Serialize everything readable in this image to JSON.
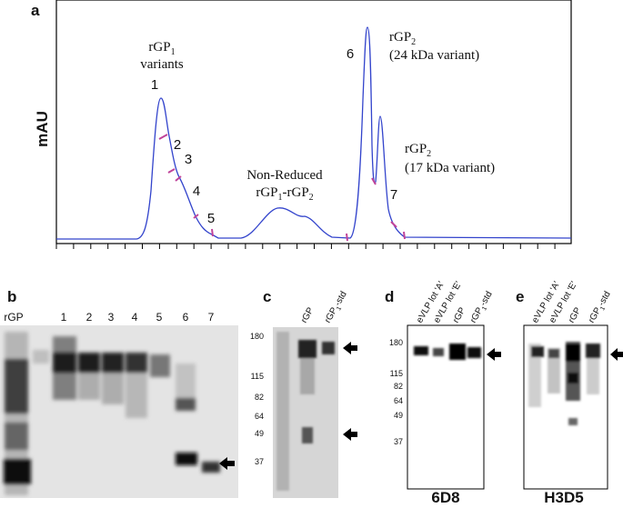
{
  "figure": {
    "panel_a": {
      "label": "a",
      "y_axis_label": "mAU",
      "rgp1_group": {
        "text": "rGP",
        "sub": "1",
        "line2": "variants"
      },
      "non_reduced": {
        "line1": "Non-Reduced",
        "part1": "rGP",
        "sub1": "1",
        "part2": "-rGP",
        "sub2": "2"
      },
      "rgp2_24": {
        "text": "rGP",
        "sub": "2",
        "line2": "(24 kDa variant)"
      },
      "rgp2_17": {
        "text": "rGP",
        "sub": "2",
        "line2": "(17 kDa variant)"
      },
      "peaks": [
        "1",
        "2",
        "3",
        "4",
        "5",
        "6",
        "7"
      ]
    },
    "panel_b": {
      "label": "b",
      "lanes": [
        "rGP",
        "1",
        "2",
        "3",
        "4",
        "5",
        "6",
        "7"
      ]
    },
    "panel_c": {
      "label": "c",
      "mw_markers": [
        180,
        115,
        82,
        64,
        49,
        37
      ],
      "lanes": [
        {
          "text": "rGP"
        },
        {
          "text": "rGP",
          "sub": "1",
          "suffix": "-std"
        }
      ]
    },
    "panel_d": {
      "label": "d",
      "mw_markers": [
        180,
        115,
        82,
        64,
        49,
        37
      ],
      "lanes": [
        {
          "text": "eVLP lot 'A'"
        },
        {
          "text": "eVLP lot 'E'"
        },
        {
          "text": "rGP"
        },
        {
          "text": "rGP",
          "sub": "1",
          "suffix": "-std"
        }
      ],
      "antibody": "6D8"
    },
    "panel_e": {
      "label": "e",
      "lanes": [
        {
          "text": "eVLP lot 'A'"
        },
        {
          "text": "eVLP lot 'E'"
        },
        {
          "text": "rGP"
        },
        {
          "text": "rGP",
          "sub": "1",
          "suffix": "-std"
        }
      ],
      "antibody": "H3D5"
    }
  }
}
